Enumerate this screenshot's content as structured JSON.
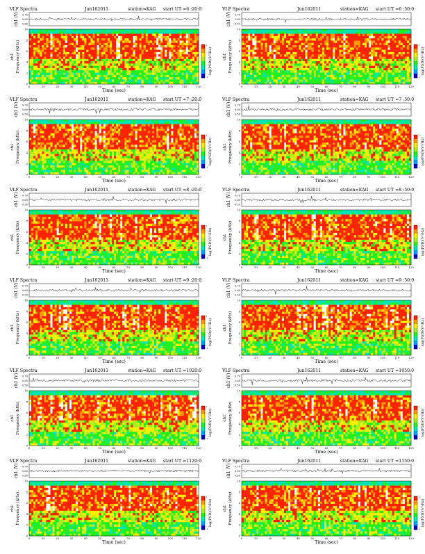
{
  "page": {
    "title_prefix": "VLF Spectra",
    "date": "Jun162011",
    "station": "station=KAG",
    "start_prefix": "start  UT =",
    "voltage_label": "ch1 (V)",
    "spectrogram_label": "ch1",
    "frequency_label": "Frequency (kHz)",
    "time_label": "Time (sec)",
    "colorbar_label": "log(PSD)(V²/Hz)"
  },
  "chart_data": [
    {
      "type": "heatmap",
      "title": "VLF Spectra",
      "date": "Jun162011",
      "station": "station=KAG",
      "start_ut": "6 :20:0",
      "xlabel": "Time (sec)",
      "ylabel": "Frequency (kHz)",
      "xlim": [
        0,
        120
      ],
      "ylim": [
        0,
        10
      ],
      "xticks": [
        0,
        10,
        20,
        30,
        40,
        50,
        60,
        70,
        80,
        90,
        100,
        110,
        120
      ],
      "yticks": [
        0,
        2,
        4,
        6,
        8,
        10
      ],
      "voltage_ylim": [
        0.5,
        0.7
      ],
      "voltage_yticks": [
        "0.70",
        "0.60",
        "0.50"
      ],
      "colorbar_ticks": [
        "1",
        "-1"
      ],
      "colors": [
        "#0000c8",
        "#00a0ff",
        "#00e6b4",
        "#22ee22",
        "#aaee22",
        "#ffee00",
        "#ff9900",
        "#ff2200",
        "#ffffff"
      ]
    },
    {
      "type": "heatmap",
      "title": "VLF Spectra",
      "date": "Jun162011",
      "station": "station=KAG",
      "start_ut": "6 :50:0",
      "xlabel": "Time (sec)",
      "ylabel": "Frequency (kHz)",
      "xlim": [
        0,
        120
      ],
      "ylim": [
        0,
        10
      ],
      "xticks": [
        0,
        10,
        20,
        30,
        40,
        50,
        60,
        70,
        80,
        90,
        100,
        110,
        120
      ],
      "yticks": [
        0,
        2,
        4,
        6,
        8,
        10
      ],
      "voltage_ylim": [
        0.5,
        0.7
      ],
      "voltage_yticks": [
        "0.70",
        "0.60",
        "0.50"
      ],
      "colorbar_ticks": [
        "1",
        "-1"
      ],
      "colors": [
        "#0000c8",
        "#00a0ff",
        "#00e6b4",
        "#22ee22",
        "#aaee22",
        "#ffee00",
        "#ff9900",
        "#ff2200",
        "#ffffff"
      ]
    },
    {
      "type": "heatmap",
      "title": "VLF Spectra",
      "date": "Jun162011",
      "station": "station=KAG",
      "start_ut": "7 :20:0",
      "xlabel": "Time (sec)",
      "ylabel": "Frequency (kHz)",
      "xlim": [
        0,
        120
      ],
      "ylim": [
        0,
        10
      ],
      "xticks": [
        0,
        10,
        20,
        30,
        40,
        50,
        60,
        70,
        80,
        90,
        100,
        110,
        120
      ],
      "yticks": [
        0,
        2,
        4,
        6,
        8,
        10
      ],
      "voltage_ylim": [
        0.5,
        0.7
      ],
      "voltage_yticks": [
        "0.70",
        "0.60",
        "0.50"
      ],
      "colorbar_ticks": [
        "1",
        "-1"
      ],
      "colors": [
        "#0000c8",
        "#00a0ff",
        "#00e6b4",
        "#22ee22",
        "#aaee22",
        "#ffee00",
        "#ff9900",
        "#ff2200",
        "#ffffff"
      ]
    },
    {
      "type": "heatmap",
      "title": "VLF Spectra",
      "date": "Jun162011",
      "station": "station=KAG",
      "start_ut": "7 :50:0",
      "xlabel": "Time (sec)",
      "ylabel": "Frequency (kHz)",
      "xlim": [
        0,
        120
      ],
      "ylim": [
        0,
        10
      ],
      "xticks": [
        0,
        10,
        20,
        30,
        40,
        50,
        60,
        70,
        80,
        90,
        100,
        110,
        120
      ],
      "yticks": [
        0,
        2,
        4,
        6,
        8,
        10
      ],
      "voltage_ylim": [
        0.5,
        0.7
      ],
      "voltage_yticks": [
        "0.70",
        "0.60",
        "0.50"
      ],
      "colorbar_ticks": [
        "1",
        "-1"
      ],
      "colors": [
        "#0000c8",
        "#00a0ff",
        "#00e6b4",
        "#22ee22",
        "#aaee22",
        "#ffee00",
        "#ff9900",
        "#ff2200",
        "#ffffff"
      ]
    },
    {
      "type": "heatmap",
      "title": "VLF Spectra",
      "date": "Jun162011",
      "station": "station=KAG",
      "start_ut": "8 :20:0",
      "xlabel": "Time (sec)",
      "ylabel": "Frequency (kHz)",
      "xlim": [
        0,
        120
      ],
      "ylim": [
        0,
        10
      ],
      "xticks": [
        0,
        10,
        20,
        30,
        40,
        50,
        60,
        70,
        80,
        90,
        100,
        110,
        120
      ],
      "yticks": [
        0,
        2,
        4,
        6,
        8,
        10
      ],
      "voltage_ylim": [
        0.5,
        0.7
      ],
      "voltage_yticks": [
        "0.70",
        "0.60",
        "0.50"
      ],
      "colorbar_ticks": [
        "1",
        "-1"
      ],
      "colors": [
        "#0000c8",
        "#00a0ff",
        "#00e6b4",
        "#22ee22",
        "#aaee22",
        "#ffee00",
        "#ff9900",
        "#ff2200",
        "#ffffff"
      ]
    },
    {
      "type": "heatmap",
      "title": "VLF Spectra",
      "date": "Jun162011",
      "station": "station=KAG",
      "start_ut": "8 :50:0",
      "xlabel": "Time (sec)",
      "ylabel": "Frequency (kHz)",
      "xlim": [
        0,
        120
      ],
      "ylim": [
        0,
        10
      ],
      "xticks": [
        0,
        10,
        20,
        30,
        40,
        50,
        60,
        70,
        80,
        90,
        100,
        110,
        120
      ],
      "yticks": [
        0,
        2,
        4,
        6,
        8,
        10
      ],
      "voltage_ylim": [
        0.5,
        0.7
      ],
      "voltage_yticks": [
        "0.70",
        "0.60",
        "0.50"
      ],
      "colorbar_ticks": [
        "1",
        "-1"
      ],
      "colors": [
        "#0000c8",
        "#00a0ff",
        "#00e6b4",
        "#22ee22",
        "#aaee22",
        "#ffee00",
        "#ff9900",
        "#ff2200",
        "#ffffff"
      ]
    },
    {
      "type": "heatmap",
      "title": "VLF Spectra",
      "date": "Jun162011",
      "station": "station=KAG",
      "start_ut": "9 :20:0",
      "xlabel": "Time (sec)",
      "ylabel": "Frequency (kHz)",
      "xlim": [
        0,
        120
      ],
      "ylim": [
        0,
        10
      ],
      "xticks": [
        0,
        10,
        20,
        30,
        40,
        50,
        60,
        70,
        80,
        90,
        100,
        110,
        120
      ],
      "yticks": [
        0,
        2,
        4,
        6,
        8,
        10
      ],
      "voltage_ylim": [
        0.5,
        0.7
      ],
      "voltage_yticks": [
        "0.70",
        "0.60",
        "0.50"
      ],
      "colorbar_ticks": [
        "1",
        "-1"
      ],
      "colors": [
        "#0000c8",
        "#00a0ff",
        "#00e6b4",
        "#22ee22",
        "#aaee22",
        "#ffee00",
        "#ff9900",
        "#ff2200",
        "#ffffff"
      ]
    },
    {
      "type": "heatmap",
      "title": "VLF Spectra",
      "date": "Jun162011",
      "station": "station=KAG",
      "start_ut": "9 :50:0",
      "xlabel": "Time (sec)",
      "ylabel": "Frequency (kHz)",
      "xlim": [
        0,
        120
      ],
      "ylim": [
        0,
        10
      ],
      "xticks": [
        0,
        10,
        20,
        30,
        40,
        50,
        60,
        70,
        80,
        90,
        100,
        110,
        120
      ],
      "yticks": [
        0,
        2,
        4,
        6,
        8,
        10
      ],
      "voltage_ylim": [
        0.5,
        0.7
      ],
      "voltage_yticks": [
        "0.70",
        "0.60",
        "0.50"
      ],
      "colorbar_ticks": [
        "1",
        "-1"
      ],
      "colors": [
        "#0000c8",
        "#00a0ff",
        "#00e6b4",
        "#22ee22",
        "#aaee22",
        "#ffee00",
        "#ff9900",
        "#ff2200",
        "#ffffff"
      ]
    },
    {
      "type": "heatmap",
      "title": "VLF Spectra",
      "date": "Jun162011",
      "station": "station=KAG",
      "start_ut": "1020:0",
      "xlabel": "Time (sec)",
      "ylabel": "Frequency (kHz)",
      "xlim": [
        0,
        120
      ],
      "ylim": [
        0,
        10
      ],
      "xticks": [
        0,
        10,
        20,
        30,
        40,
        50,
        60,
        70,
        80,
        90,
        100,
        110,
        120
      ],
      "yticks": [
        0,
        2,
        4,
        6,
        8,
        10
      ],
      "voltage_ylim": [
        0.5,
        0.7
      ],
      "voltage_yticks": [
        "0.70",
        "0.60",
        "0.50"
      ],
      "colorbar_ticks": [
        "1",
        "-1"
      ],
      "colors": [
        "#0000c8",
        "#00a0ff",
        "#00e6b4",
        "#22ee22",
        "#aaee22",
        "#ffee00",
        "#ff9900",
        "#ff2200",
        "#ffffff"
      ]
    },
    {
      "type": "heatmap",
      "title": "VLF Spectra",
      "date": "Jun162011",
      "station": "station=KAG",
      "start_ut": "1050:0",
      "xlabel": "Time (sec)",
      "ylabel": "Frequency (kHz)",
      "xlim": [
        0,
        120
      ],
      "ylim": [
        0,
        10
      ],
      "xticks": [
        0,
        10,
        20,
        30,
        40,
        50,
        60,
        70,
        80,
        90,
        100,
        110,
        120
      ],
      "yticks": [
        0,
        2,
        4,
        6,
        8,
        10
      ],
      "voltage_ylim": [
        0.5,
        0.7
      ],
      "voltage_yticks": [
        "0.70",
        "0.60",
        "0.50"
      ],
      "colorbar_ticks": [
        "1",
        "-1"
      ],
      "colors": [
        "#0000c8",
        "#00a0ff",
        "#00e6b4",
        "#22ee22",
        "#aaee22",
        "#ffee00",
        "#ff9900",
        "#ff2200",
        "#ffffff"
      ]
    },
    {
      "type": "heatmap",
      "title": "VLF Spectra",
      "date": "Jun162011",
      "station": "station=KAG",
      "start_ut": "1120:0",
      "xlabel": "Time (sec)",
      "ylabel": "Frequency (kHz)",
      "xlim": [
        0,
        120
      ],
      "ylim": [
        0,
        10
      ],
      "xticks": [
        0,
        10,
        20,
        30,
        40,
        50,
        60,
        70,
        80,
        90,
        100,
        110,
        120
      ],
      "yticks": [
        0,
        2,
        4,
        6,
        8,
        10
      ],
      "voltage_ylim": [
        0.5,
        0.7
      ],
      "voltage_yticks": [
        "0.70",
        "0.60",
        "0.50"
      ],
      "colorbar_ticks": [
        "1",
        "-1"
      ],
      "colors": [
        "#0000c8",
        "#00a0ff",
        "#00e6b4",
        "#22ee22",
        "#aaee22",
        "#ffee00",
        "#ff9900",
        "#ff2200",
        "#ffffff"
      ]
    },
    {
      "type": "heatmap",
      "title": "VLF Spectra",
      "date": "Jun162011",
      "station": "station=KAG",
      "start_ut": "1150:0",
      "xlabel": "Time (sec)",
      "ylabel": "Frequency (kHz)",
      "xlim": [
        0,
        120
      ],
      "ylim": [
        0,
        10
      ],
      "xticks": [
        0,
        10,
        20,
        30,
        40,
        50,
        60,
        70,
        80,
        90,
        100,
        110,
        120
      ],
      "yticks": [
        0,
        2,
        4,
        6,
        8,
        10
      ],
      "voltage_ylim": [
        0.5,
        0.7
      ],
      "voltage_yticks": [
        "0.70",
        "0.60",
        "0.50"
      ],
      "colorbar_ticks": [
        "1",
        "-1"
      ],
      "colors": [
        "#0000c8",
        "#00a0ff",
        "#00e6b4",
        "#22ee22",
        "#aaee22",
        "#ffee00",
        "#ff9900",
        "#ff2200",
        "#ffffff"
      ]
    }
  ]
}
